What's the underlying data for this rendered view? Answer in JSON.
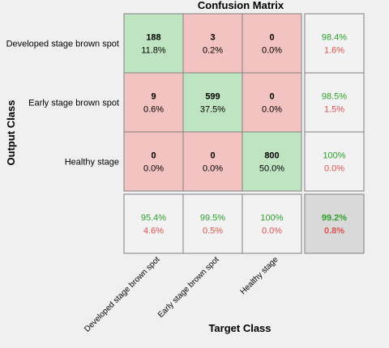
{
  "chart_data": {
    "type": "heatmap",
    "title": "Confusion Matrix",
    "xlabel": "Target Class",
    "ylabel": "Output Class",
    "classes": [
      "Developed stage brown spot",
      "Early stage brown spot",
      "Healthy stage"
    ],
    "matrix": {
      "counts": [
        [
          188,
          3,
          0
        ],
        [
          9,
          599,
          0
        ],
        [
          0,
          0,
          800
        ]
      ],
      "percents": [
        [
          "11.8%",
          "0.2%",
          "0.0%"
        ],
        [
          "0.6%",
          "37.5%",
          "0.0%"
        ],
        [
          "0.0%",
          "0.0%",
          "50.0%"
        ]
      ]
    },
    "row_summary": [
      {
        "correct": "98.4%",
        "error": "1.6%"
      },
      {
        "correct": "98.5%",
        "error": "1.5%"
      },
      {
        "correct": "100%",
        "error": "0.0%"
      }
    ],
    "col_summary": [
      {
        "correct": "95.4%",
        "error": "4.6%"
      },
      {
        "correct": "99.5%",
        "error": "0.5%"
      },
      {
        "correct": "100%",
        "error": "0.0%"
      }
    ],
    "overall": {
      "correct": "99.2%",
      "error": "0.8%"
    },
    "colors": {
      "diagonal": "#bfe4c1",
      "off_diagonal": "#f3c3c1",
      "summary": "#f2f2f2",
      "overall": "#d9d9d9",
      "correct_text": "#2ca02c",
      "error_text": "#d9534f"
    }
  }
}
